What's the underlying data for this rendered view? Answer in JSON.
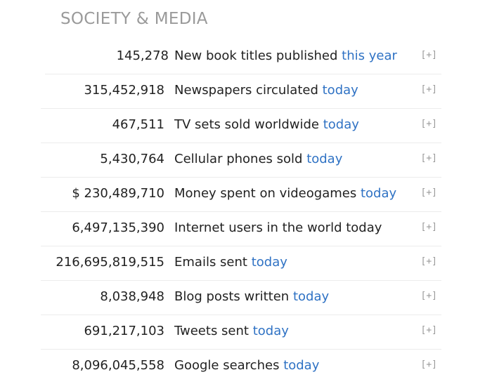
{
  "section": {
    "title": "SOCIETY & MEDIA"
  },
  "toggle_label": "[+]",
  "rows": [
    {
      "value": "145,278",
      "label": "New book titles published",
      "link": "this year"
    },
    {
      "value": "315,452,918",
      "label": "Newspapers circulated",
      "link": "today"
    },
    {
      "value": "467,511",
      "label": "TV sets sold worldwide",
      "link": "today"
    },
    {
      "value": "5,430,764",
      "label": "Cellular phones sold",
      "link": "today"
    },
    {
      "value": "$ 230,489,710",
      "label": "Money spent on videogames",
      "link": "today"
    },
    {
      "value": "6,497,135,390",
      "label": "Internet users in the world today",
      "link": ""
    },
    {
      "value": "216,695,819,515",
      "label": "Emails sent",
      "link": "today"
    },
    {
      "value": "8,038,948",
      "label": "Blog posts written",
      "link": "today"
    },
    {
      "value": "691,217,103",
      "label": "Tweets sent",
      "link": "today"
    },
    {
      "value": "8,096,045,558",
      "label": "Google searches",
      "link": "today"
    }
  ]
}
